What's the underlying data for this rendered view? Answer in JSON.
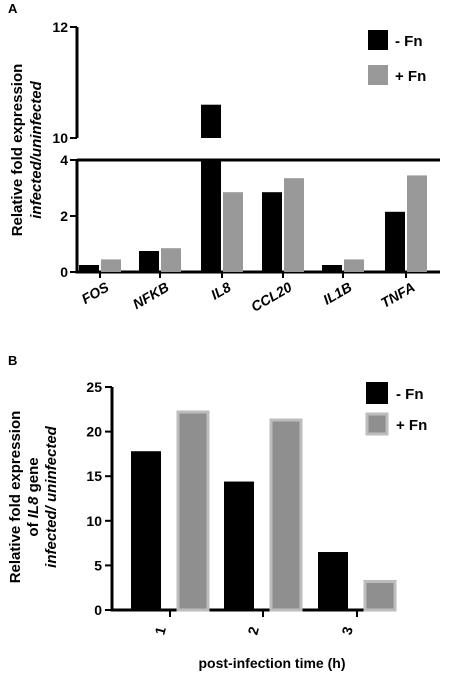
{
  "figure": {
    "panel_a_letter": "A",
    "panel_b_letter": "B"
  },
  "chart_data": [
    {
      "type": "bar",
      "panel": "A",
      "categories": [
        "FOS",
        "NFKB",
        "IL8",
        "CCL20",
        "IL1B",
        "TNFA"
      ],
      "series": [
        {
          "name": "- Fn",
          "values": [
            0.25,
            0.75,
            10.6,
            2.85,
            0.25,
            2.15
          ],
          "color": "#000000"
        },
        {
          "name": "+ Fn",
          "values": [
            0.45,
            0.85,
            2.85,
            3.35,
            0.45,
            3.45
          ],
          "color": "#999999"
        }
      ],
      "ylabel_line1": "Relative fold expression",
      "ylabel_line2": "infected/uninfected",
      "axis_break": {
        "lower": [
          0,
          4
        ],
        "upper": [
          10,
          12
        ]
      },
      "yticks_lower": [
        "0",
        "2",
        "4"
      ],
      "yticks_upper": [
        "10",
        "12"
      ],
      "legend": {
        "items": [
          "-  Fn",
          "+ Fn"
        ],
        "placement": "top-right"
      },
      "grid": false
    },
    {
      "type": "bar",
      "panel": "B",
      "categories": [
        "1",
        "2",
        "3"
      ],
      "series": [
        {
          "name": "- Fn",
          "values": [
            17.8,
            14.4,
            6.5
          ],
          "color": "#000000"
        },
        {
          "name": "+ Fn",
          "values": [
            22.2,
            21.3,
            3.2
          ],
          "color": "#999999"
        }
      ],
      "ylabel_line1": "Relative fold expression",
      "ylabel_line2_prefix": "of ",
      "ylabel_line2_gene": "IL8",
      "ylabel_line2_suffix": " gene",
      "ylabel_line3": "infected/ uninfected",
      "xlabel": "post-infection time (h)",
      "ylim": [
        0,
        25
      ],
      "yticks": [
        "0",
        "5",
        "10",
        "15",
        "20",
        "25"
      ],
      "legend": {
        "items": [
          "-  Fn",
          "+ Fn"
        ],
        "placement": "top-right"
      },
      "grid": false
    }
  ]
}
